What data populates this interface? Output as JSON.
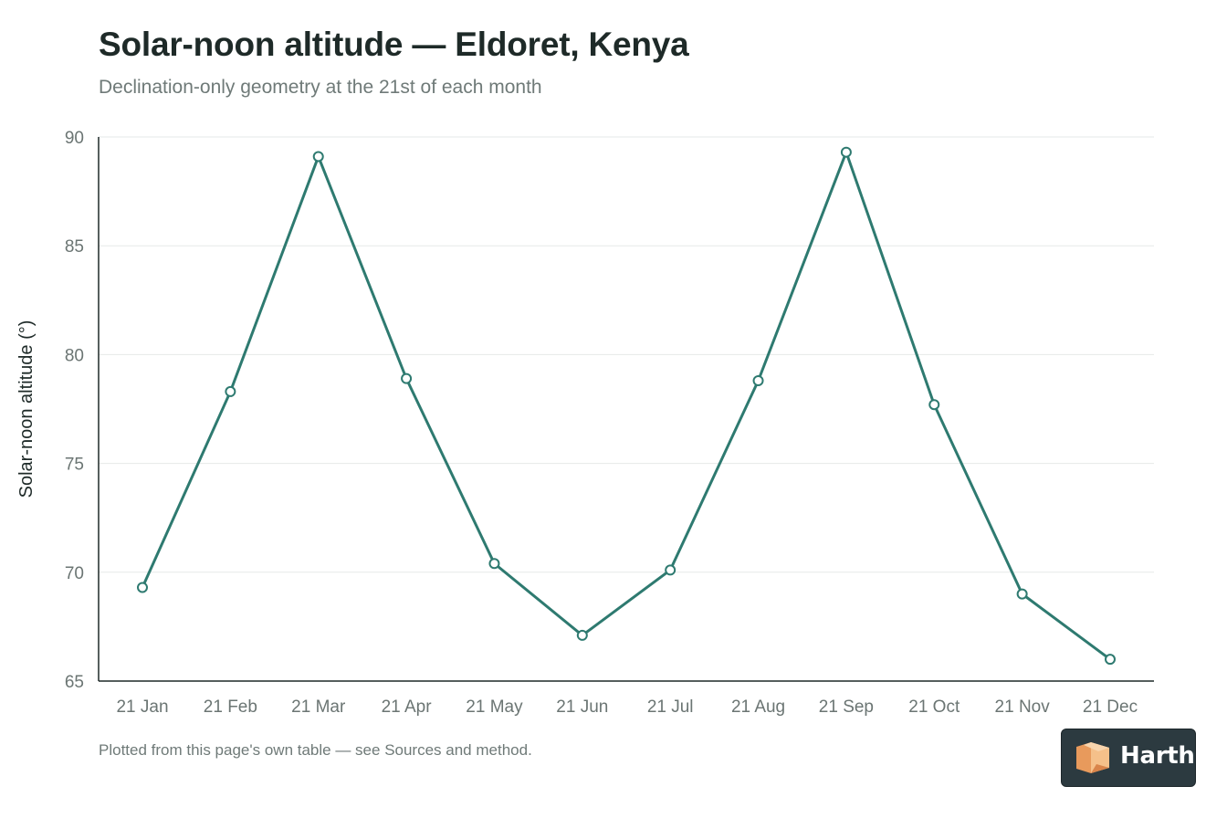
{
  "header": {
    "title": "Solar-noon altitude — Eldoret, Kenya",
    "subtitle": "Declination-only geometry at the 21st of each month"
  },
  "footer": {
    "note": "Plotted from this page's own table — see Sources and method."
  },
  "logo": {
    "wordmark": "Harth"
  },
  "colors": {
    "series": "#2e7a70",
    "grid": "#e6e9e8",
    "axis": "#1e2a28"
  },
  "chart_data": {
    "type": "line",
    "title": "Solar-noon altitude — Eldoret, Kenya",
    "subtitle": "Declination-only geometry at the 21st of each month",
    "xlabel": "",
    "ylabel": "Solar-noon altitude (°)",
    "categories": [
      "21 Jan",
      "21 Feb",
      "21 Mar",
      "21 Apr",
      "21 May",
      "21 Jun",
      "21 Jul",
      "21 Aug",
      "21 Sep",
      "21 Oct",
      "21 Nov",
      "21 Dec"
    ],
    "ylim": [
      65,
      90
    ],
    "yticks": [
      65,
      70,
      75,
      80,
      85,
      90
    ],
    "grid": true,
    "legend": "none",
    "series": [
      {
        "values": [
          69.3,
          78.3,
          89.1,
          78.9,
          70.4,
          67.1,
          70.1,
          78.8,
          89.3,
          77.7,
          69.0,
          66.0
        ]
      }
    ]
  }
}
